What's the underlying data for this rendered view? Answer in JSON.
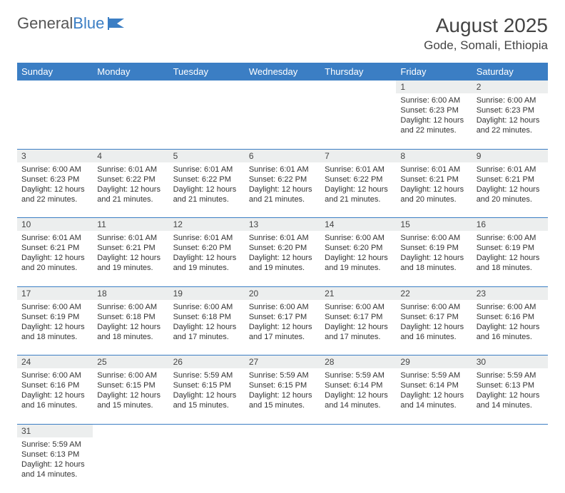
{
  "logo": {
    "text_a": "General",
    "text_b": "Blue"
  },
  "title": "August 2025",
  "location": "Gode, Somali, Ethiopia",
  "colors": {
    "header_bg": "#3b7ec4",
    "header_text": "#ffffff",
    "daynum_bg": "#eceeee",
    "row_border": "#3b7ec4",
    "body_text": "#333333"
  },
  "daysOfWeek": [
    "Sunday",
    "Monday",
    "Tuesday",
    "Wednesday",
    "Thursday",
    "Friday",
    "Saturday"
  ],
  "weeks": [
    [
      null,
      null,
      null,
      null,
      null,
      {
        "n": "1",
        "sr": "6:00 AM",
        "ss": "6:23 PM",
        "dl": "12 hours and 22 minutes."
      },
      {
        "n": "2",
        "sr": "6:00 AM",
        "ss": "6:23 PM",
        "dl": "12 hours and 22 minutes."
      }
    ],
    [
      {
        "n": "3",
        "sr": "6:00 AM",
        "ss": "6:23 PM",
        "dl": "12 hours and 22 minutes."
      },
      {
        "n": "4",
        "sr": "6:01 AM",
        "ss": "6:22 PM",
        "dl": "12 hours and 21 minutes."
      },
      {
        "n": "5",
        "sr": "6:01 AM",
        "ss": "6:22 PM",
        "dl": "12 hours and 21 minutes."
      },
      {
        "n": "6",
        "sr": "6:01 AM",
        "ss": "6:22 PM",
        "dl": "12 hours and 21 minutes."
      },
      {
        "n": "7",
        "sr": "6:01 AM",
        "ss": "6:22 PM",
        "dl": "12 hours and 21 minutes."
      },
      {
        "n": "8",
        "sr": "6:01 AM",
        "ss": "6:21 PM",
        "dl": "12 hours and 20 minutes."
      },
      {
        "n": "9",
        "sr": "6:01 AM",
        "ss": "6:21 PM",
        "dl": "12 hours and 20 minutes."
      }
    ],
    [
      {
        "n": "10",
        "sr": "6:01 AM",
        "ss": "6:21 PM",
        "dl": "12 hours and 20 minutes."
      },
      {
        "n": "11",
        "sr": "6:01 AM",
        "ss": "6:21 PM",
        "dl": "12 hours and 19 minutes."
      },
      {
        "n": "12",
        "sr": "6:01 AM",
        "ss": "6:20 PM",
        "dl": "12 hours and 19 minutes."
      },
      {
        "n": "13",
        "sr": "6:01 AM",
        "ss": "6:20 PM",
        "dl": "12 hours and 19 minutes."
      },
      {
        "n": "14",
        "sr": "6:00 AM",
        "ss": "6:20 PM",
        "dl": "12 hours and 19 minutes."
      },
      {
        "n": "15",
        "sr": "6:00 AM",
        "ss": "6:19 PM",
        "dl": "12 hours and 18 minutes."
      },
      {
        "n": "16",
        "sr": "6:00 AM",
        "ss": "6:19 PM",
        "dl": "12 hours and 18 minutes."
      }
    ],
    [
      {
        "n": "17",
        "sr": "6:00 AM",
        "ss": "6:19 PM",
        "dl": "12 hours and 18 minutes."
      },
      {
        "n": "18",
        "sr": "6:00 AM",
        "ss": "6:18 PM",
        "dl": "12 hours and 18 minutes."
      },
      {
        "n": "19",
        "sr": "6:00 AM",
        "ss": "6:18 PM",
        "dl": "12 hours and 17 minutes."
      },
      {
        "n": "20",
        "sr": "6:00 AM",
        "ss": "6:17 PM",
        "dl": "12 hours and 17 minutes."
      },
      {
        "n": "21",
        "sr": "6:00 AM",
        "ss": "6:17 PM",
        "dl": "12 hours and 17 minutes."
      },
      {
        "n": "22",
        "sr": "6:00 AM",
        "ss": "6:17 PM",
        "dl": "12 hours and 16 minutes."
      },
      {
        "n": "23",
        "sr": "6:00 AM",
        "ss": "6:16 PM",
        "dl": "12 hours and 16 minutes."
      }
    ],
    [
      {
        "n": "24",
        "sr": "6:00 AM",
        "ss": "6:16 PM",
        "dl": "12 hours and 16 minutes."
      },
      {
        "n": "25",
        "sr": "6:00 AM",
        "ss": "6:15 PM",
        "dl": "12 hours and 15 minutes."
      },
      {
        "n": "26",
        "sr": "5:59 AM",
        "ss": "6:15 PM",
        "dl": "12 hours and 15 minutes."
      },
      {
        "n": "27",
        "sr": "5:59 AM",
        "ss": "6:15 PM",
        "dl": "12 hours and 15 minutes."
      },
      {
        "n": "28",
        "sr": "5:59 AM",
        "ss": "6:14 PM",
        "dl": "12 hours and 14 minutes."
      },
      {
        "n": "29",
        "sr": "5:59 AM",
        "ss": "6:14 PM",
        "dl": "12 hours and 14 minutes."
      },
      {
        "n": "30",
        "sr": "5:59 AM",
        "ss": "6:13 PM",
        "dl": "12 hours and 14 minutes."
      }
    ],
    [
      {
        "n": "31",
        "sr": "5:59 AM",
        "ss": "6:13 PM",
        "dl": "12 hours and 14 minutes."
      },
      null,
      null,
      null,
      null,
      null,
      null
    ]
  ],
  "labels": {
    "sunrise": "Sunrise:",
    "sunset": "Sunset:",
    "daylight": "Daylight:"
  }
}
